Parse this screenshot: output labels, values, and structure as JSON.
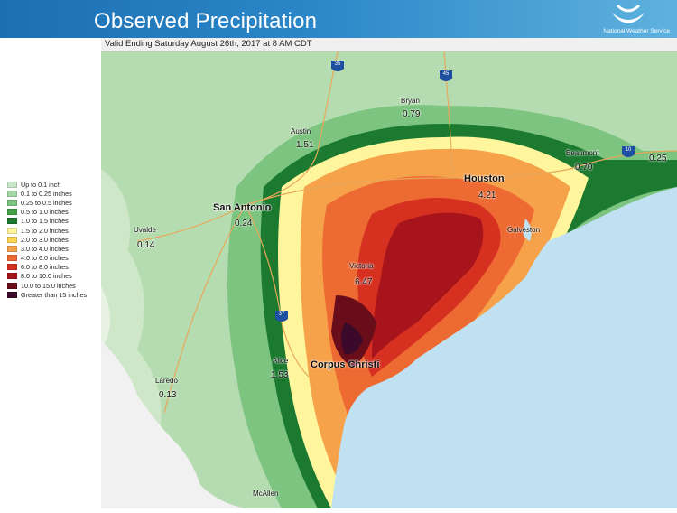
{
  "header": {
    "title": "Observed Precipitation",
    "agency": "National Weather Service"
  },
  "subtitle": "Valid Ending Saturday August 26th, 2017 at 8 AM CDT",
  "legend": [
    {
      "label": "Up to 0.1 inch",
      "color": "#c8e6c9"
    },
    {
      "label": "0.1 to 0.25 inches",
      "color": "#a5d6a7"
    },
    {
      "label": "0.25 to 0.5 inches",
      "color": "#7cc47f"
    },
    {
      "label": "0.5 to 1.0 inches",
      "color": "#43a047"
    },
    {
      "label": "1.0 to 1.5 inches",
      "color": "#1b7a2f"
    },
    {
      "label": "1.5 to 2.0 inches",
      "color": "#fff59d"
    },
    {
      "label": "2.0 to 3.0 inches",
      "color": "#fdd54f"
    },
    {
      "label": "3.0 to 4.0 inches",
      "color": "#f6a24b"
    },
    {
      "label": "4.0 to 6.0 inches",
      "color": "#ee6a33"
    },
    {
      "label": "6.0 to 8.0 inches",
      "color": "#d63020"
    },
    {
      "label": "8.0 to 10.0 inches",
      "color": "#a8141b"
    },
    {
      "label": "10.0 to 15.0 inches",
      "color": "#6a0d1a"
    },
    {
      "label": "Greater than 15 inches",
      "color": "#3b0a2a"
    }
  ],
  "cities": [
    {
      "name": "Austin",
      "value": "1.51"
    },
    {
      "name": "Bryan",
      "value": "0.79"
    },
    {
      "name": "San Antonio",
      "value": "0.24"
    },
    {
      "name": "Houston",
      "value": "4.21"
    },
    {
      "name": "Beaumont",
      "value": "0.70"
    },
    {
      "name": "Galveston",
      "value": ""
    },
    {
      "name": "Victoria",
      "value": "6.47"
    },
    {
      "name": "Uvalde",
      "value": "0.14"
    },
    {
      "name": "Alice",
      "value": "1.53"
    },
    {
      "name": "Corpus Christi",
      "value": ""
    },
    {
      "name": "Laredo",
      "value": "0.13"
    },
    {
      "name": "McAllen",
      "value": ""
    }
  ],
  "extra_values": [
    "0.25"
  ],
  "shields": [
    "35",
    "45",
    "10",
    "37"
  ],
  "colors": {
    "header_start": "#1c6fb3",
    "header_end": "#5fb2de",
    "gulf": "#bfe1f2",
    "land": "#ffffff",
    "roads": "#e7a85a"
  },
  "icons": [
    "noaa-logo-icon"
  ]
}
